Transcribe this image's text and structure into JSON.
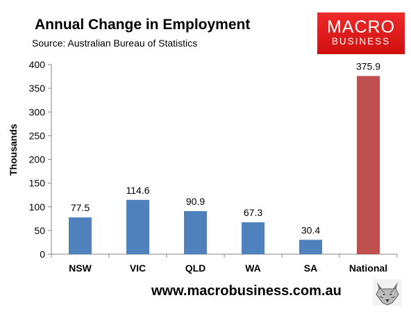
{
  "header": {
    "title": "Annual Change in Employment",
    "subtitle": "Source: Australian Bureau of Statistics"
  },
  "logo": {
    "line1": "MACRO",
    "line2": "BUSINESS",
    "color": "#e21b1b"
  },
  "footer": {
    "url": "www.macrobusiness.com.au",
    "mascot_icon": "wolf-icon"
  },
  "chart_data": {
    "type": "bar",
    "categories": [
      "NSW",
      "VIC",
      "QLD",
      "WA",
      "SA",
      "National"
    ],
    "values": [
      77.5,
      114.6,
      90.9,
      67.3,
      30.4,
      375.9
    ],
    "value_labels": [
      "77.5",
      "114.6",
      "90.9",
      "67.3",
      "30.4",
      "375.9"
    ],
    "colors": [
      "#4f81bd",
      "#4f81bd",
      "#4f81bd",
      "#4f81bd",
      "#4f81bd",
      "#c0504d"
    ],
    "title": "Annual Change in Employment",
    "xlabel": "",
    "ylabel": "Thousands",
    "ylim": [
      0,
      400
    ],
    "yticks": [
      0,
      50,
      100,
      150,
      200,
      250,
      300,
      350,
      400
    ],
    "grid": false,
    "legend": "none"
  }
}
